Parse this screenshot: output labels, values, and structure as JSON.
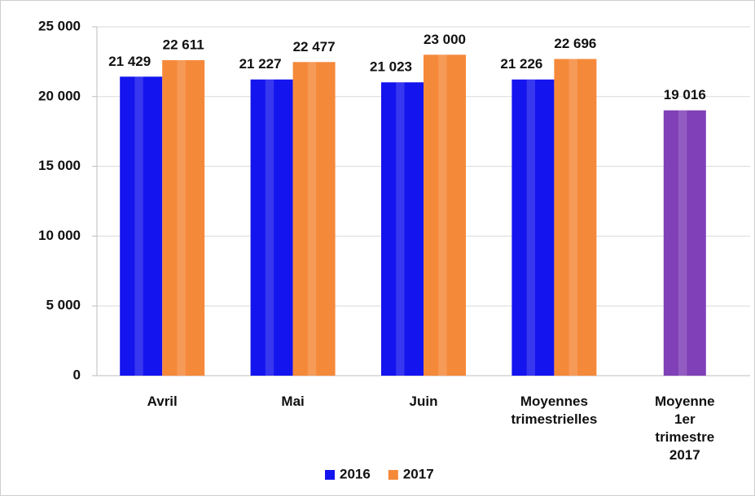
{
  "chart_data": {
    "type": "bar",
    "categories": [
      "Avril",
      "Mai",
      "Juin",
      "Moyennes\ntrimestrielles",
      "Moyenne\n1er\ntrimestre\n2017"
    ],
    "series": [
      {
        "name": "2016",
        "color": "#1414ee",
        "values": [
          21429,
          21227,
          21023,
          21226,
          null
        ],
        "value_labels": [
          "21 429",
          "21 227",
          "21 023",
          "21 226",
          null
        ]
      },
      {
        "name": "2017",
        "color": "#f5893a",
        "values": [
          22611,
          22477,
          23000,
          22696,
          19016
        ],
        "value_labels": [
          "22 611",
          "22 477",
          "23 000",
          "22 696",
          "19 016"
        ],
        "point_colors": [
          null,
          null,
          null,
          null,
          "#8040b8"
        ]
      }
    ],
    "ylim": [
      0,
      25000
    ],
    "yticks": [
      0,
      {
        "value": 5000,
        "label": "5 000"
      },
      {
        "value": 10000,
        "label": "10 000"
      },
      {
        "value": 15000,
        "label": "15 000"
      },
      {
        "value": 20000,
        "label": "20 000"
      },
      {
        "value": 25000,
        "label": "25 000"
      }
    ],
    "grid": true,
    "legend": "bottom"
  }
}
